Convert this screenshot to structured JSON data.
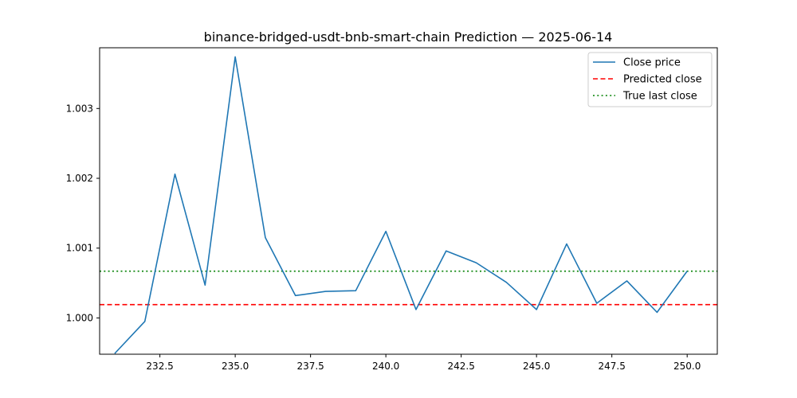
{
  "chart_data": {
    "type": "line",
    "title": "binance-bridged-usdt-bnb-smart-chain Prediction — 2025-06-14",
    "xlabel": "",
    "ylabel": "",
    "xlim": [
      230.5,
      251.0
    ],
    "ylim": [
      0.99948,
      1.00387
    ],
    "x_ticks": [
      232.5,
      235.0,
      237.5,
      240.0,
      242.5,
      245.0,
      247.5,
      250.0
    ],
    "x_tick_labels": [
      "232.5",
      "235.0",
      "237.5",
      "240.0",
      "242.5",
      "245.0",
      "247.5",
      "250.0"
    ],
    "y_ticks": [
      1.0,
      1.001,
      1.002,
      1.003
    ],
    "y_tick_labels": [
      "1.000",
      "1.001",
      "1.002",
      "1.003"
    ],
    "grid": false,
    "legend_position": "top-right",
    "series": [
      {
        "name": "Close price",
        "color": "#1f77b4",
        "style": "solid",
        "x": [
          231,
          232,
          233,
          234,
          235,
          236,
          237,
          238,
          239,
          240,
          241,
          242,
          243,
          244,
          245,
          246,
          247,
          248,
          249,
          250
        ],
        "values": [
          0.99949,
          0.99995,
          1.00206,
          1.00047,
          1.00374,
          1.00115,
          1.00032,
          1.00038,
          1.00039,
          1.00124,
          1.00012,
          1.00096,
          1.00079,
          1.00051,
          1.00012,
          1.00106,
          1.00021,
          1.00053,
          1.00008,
          1.00067
        ]
      }
    ],
    "hlines": [
      {
        "name": "Predicted close",
        "value": 1.00019,
        "color": "#ff0000",
        "style": "dashed"
      },
      {
        "name": "True last close",
        "value": 1.00067,
        "color": "#008000",
        "style": "dotted"
      }
    ]
  }
}
